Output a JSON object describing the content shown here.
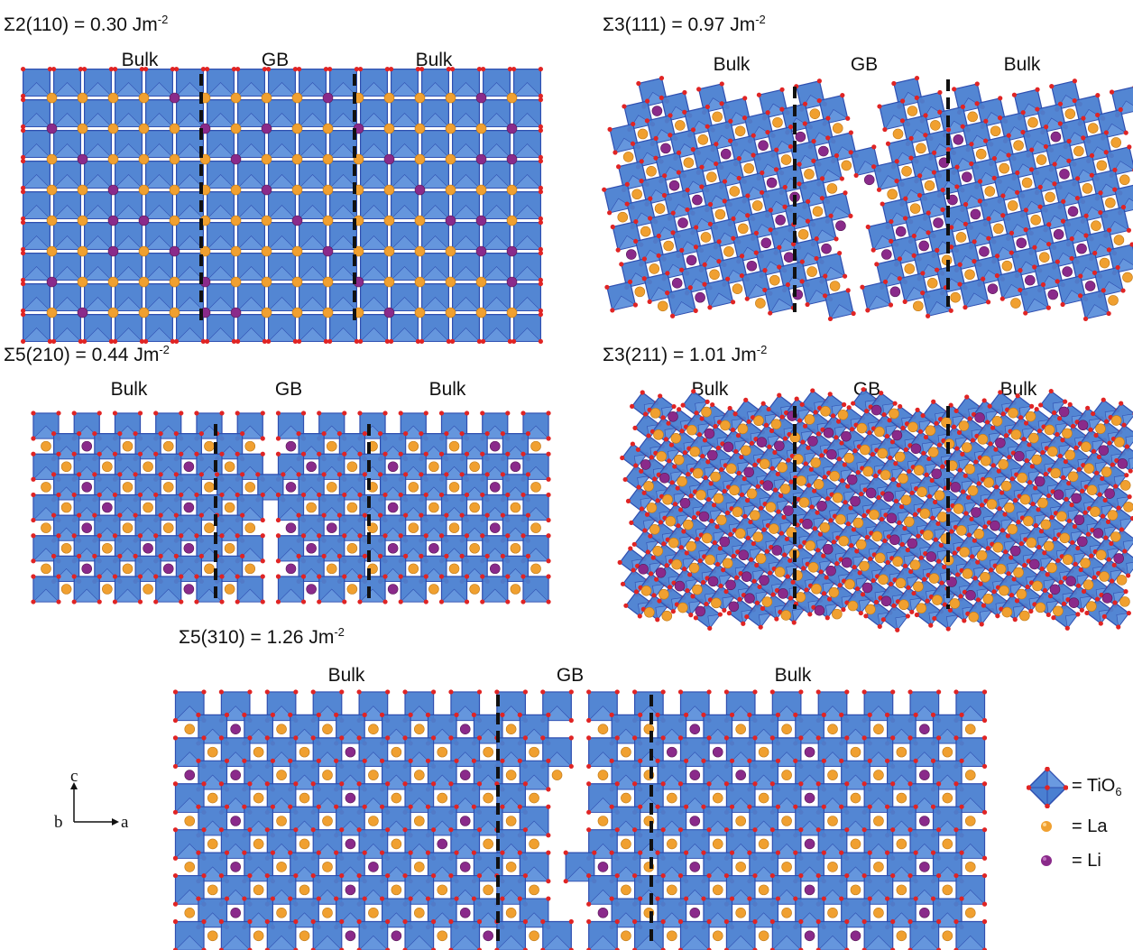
{
  "panels": [
    {
      "id": "s2-110",
      "title_prefix": "Σ2(110) = 0.30 Jm",
      "title_exp": "-2",
      "labels": [
        "Bulk",
        "GB",
        "Bulk"
      ]
    },
    {
      "id": "s3-111",
      "title_prefix": "Σ3(111) = 0.97 Jm",
      "title_exp": "-2",
      "labels": [
        "Bulk",
        "GB",
        "Bulk"
      ]
    },
    {
      "id": "s5-210",
      "title_prefix": "Σ5(210) = 0.44 Jm",
      "title_exp": "-2",
      "labels": [
        "Bulk",
        "GB",
        "Bulk"
      ]
    },
    {
      "id": "s3-211",
      "title_prefix": "Σ3(211) = 1.01 Jm",
      "title_exp": "-2",
      "labels": [
        "Bulk",
        "GB",
        "Bulk"
      ]
    },
    {
      "id": "s5-310",
      "title_prefix": "Σ5(310) = 1.26 Jm",
      "title_exp": "-2",
      "labels": [
        "Bulk",
        "GB",
        "Bulk"
      ]
    }
  ],
  "axes": {
    "up": "c",
    "origin": "b",
    "right": "a"
  },
  "legend": [
    {
      "symbol": "tio6-octahedron-icon",
      "text": "= TiO",
      "sub": "6"
    },
    {
      "symbol": "la-atom-icon",
      "text": "= La",
      "sub": ""
    },
    {
      "symbol": "li-atom-icon",
      "text": "= Li",
      "sub": ""
    }
  ],
  "colors": {
    "octahedron_fill": "#4a7fd1",
    "octahedron_edge": "#2f4fb0",
    "oxygen": "#e02424",
    "la": "#f0a030",
    "li": "#8a2a8a",
    "boundary_line": "#111111"
  }
}
